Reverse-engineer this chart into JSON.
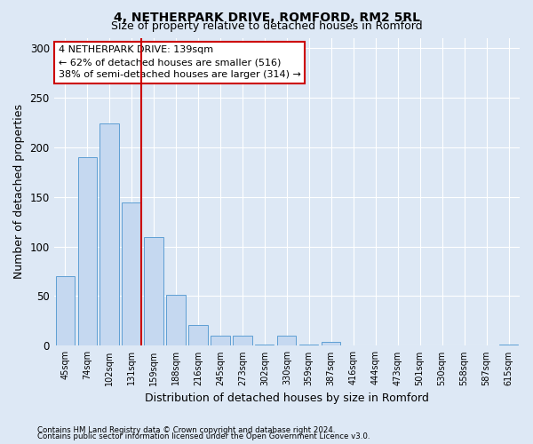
{
  "title1": "4, NETHERPARK DRIVE, ROMFORD, RM2 5RL",
  "title2": "Size of property relative to detached houses in Romford",
  "xlabel": "Distribution of detached houses by size in Romford",
  "ylabel": "Number of detached properties",
  "bin_labels": [
    "45sqm",
    "74sqm",
    "102sqm",
    "131sqm",
    "159sqm",
    "188sqm",
    "216sqm",
    "245sqm",
    "273sqm",
    "302sqm",
    "330sqm",
    "359sqm",
    "387sqm",
    "416sqm",
    "444sqm",
    "473sqm",
    "501sqm",
    "530sqm",
    "558sqm",
    "587sqm",
    "615sqm"
  ],
  "bar_heights": [
    70,
    190,
    224,
    144,
    109,
    51,
    21,
    10,
    10,
    1,
    10,
    1,
    4,
    0,
    0,
    0,
    0,
    0,
    0,
    0,
    1
  ],
  "bar_color": "#c5d8f0",
  "bar_edge_color": "#5e9fd4",
  "property_bin_index": 3,
  "property_line_color": "#cc0000",
  "annotation_line1": "4 NETHERPARK DRIVE: 139sqm",
  "annotation_line2": "← 62% of detached houses are smaller (516)",
  "annotation_line3": "38% of semi-detached houses are larger (314) →",
  "annotation_box_color": "#ffffff",
  "annotation_box_edge": "#cc0000",
  "ylim": [
    0,
    310
  ],
  "yticks": [
    0,
    50,
    100,
    150,
    200,
    250,
    300
  ],
  "footer1": "Contains HM Land Registry data © Crown copyright and database right 2024.",
  "footer2": "Contains public sector information licensed under the Open Government Licence v3.0.",
  "background_color": "#dde8f5",
  "plot_background": "#dde8f5",
  "title1_fontsize": 10,
  "title2_fontsize": 9,
  "ylabel_fontsize": 9,
  "xlabel_fontsize": 9
}
